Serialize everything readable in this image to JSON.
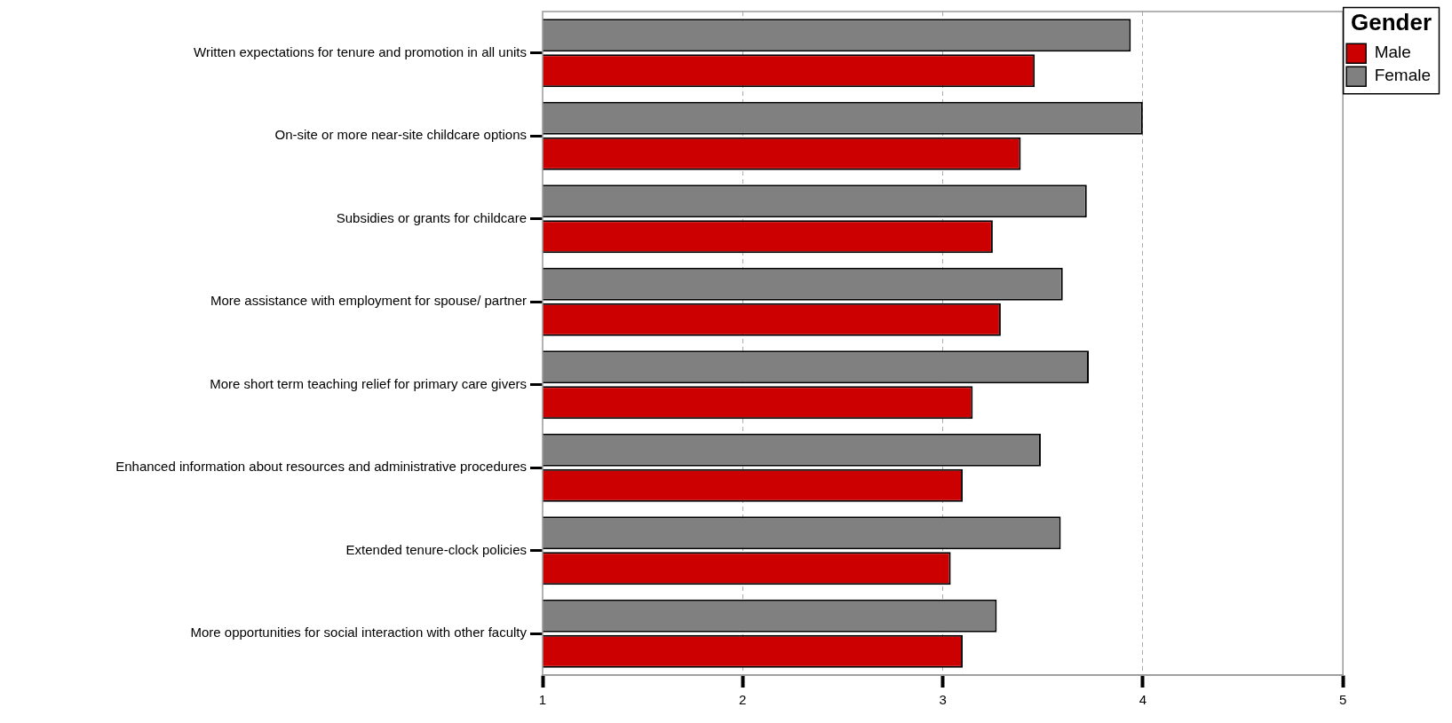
{
  "chart_data": {
    "type": "bar",
    "orientation": "horizontal",
    "categories": [
      "Written expectations for tenure and promotion in all units",
      "On-site or more near-site childcare options",
      "Subsidies or grants for childcare",
      "More assistance with employment for spouse/ partner",
      "More short term teaching relief for primary care givers",
      "Enhanced information about resources and administrative procedures",
      "Extended tenure-clock policies",
      "More opportunities for social interaction with other faculty"
    ],
    "series": [
      {
        "name": "Male",
        "color": "#cc0000",
        "values": [
          3.46,
          3.39,
          3.25,
          3.29,
          3.15,
          3.1,
          3.04,
          3.1
        ]
      },
      {
        "name": "Female",
        "color": "#808080",
        "values": [
          3.94,
          4.0,
          3.72,
          3.6,
          3.73,
          3.49,
          3.59,
          3.27
        ]
      }
    ],
    "legend_title": "Gender",
    "legend": "top right",
    "xlim": [
      1,
      5
    ],
    "xticks": [
      1,
      2,
      3,
      4,
      5
    ],
    "grid": "x"
  }
}
